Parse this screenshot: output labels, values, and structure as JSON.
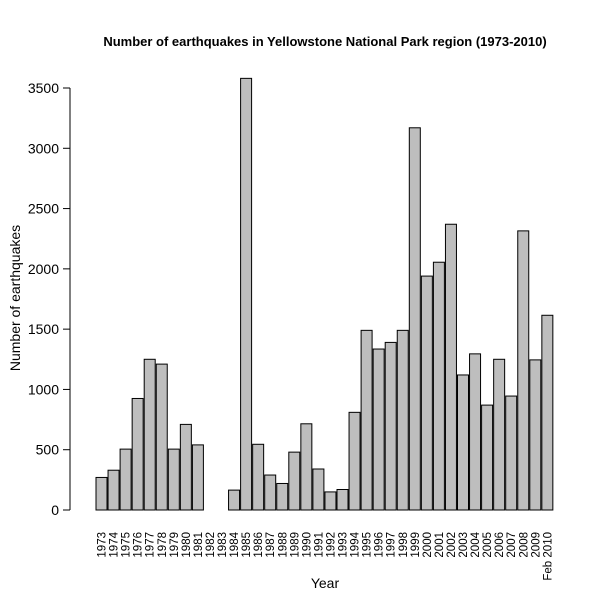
{
  "chart_data": {
    "type": "bar",
    "title": "Number of earthquakes in Yellowstone National Park region (1973-2010)",
    "xlabel": "Year",
    "ylabel": "Number of earthquakes",
    "ylim": [
      0,
      3600
    ],
    "yticks": [
      0,
      500,
      1000,
      1500,
      2000,
      2500,
      3000,
      3500
    ],
    "grid": false,
    "bar_color": "#bebebe",
    "categories": [
      "1973",
      "1974",
      "1975",
      "1976",
      "1977",
      "1978",
      "1979",
      "1980",
      "1981",
      "1982",
      "1983",
      "1984",
      "1985",
      "1986",
      "1987",
      "1988",
      "1989",
      "1990",
      "1991",
      "1992",
      "1993",
      "1994",
      "1995",
      "1996",
      "1997",
      "1998",
      "1999",
      "2000",
      "2001",
      "2002",
      "2003",
      "2004",
      "2005",
      "2006",
      "2007",
      "2008",
      "2009",
      "Feb 2010"
    ],
    "values": [
      270,
      330,
      505,
      925,
      1250,
      1210,
      505,
      710,
      540,
      0,
      0,
      165,
      3580,
      545,
      290,
      220,
      480,
      715,
      340,
      150,
      170,
      810,
      1490,
      1335,
      1390,
      1490,
      3170,
      1940,
      2055,
      2370,
      1120,
      1295,
      870,
      1250,
      945,
      2315,
      1245,
      1615
    ]
  }
}
